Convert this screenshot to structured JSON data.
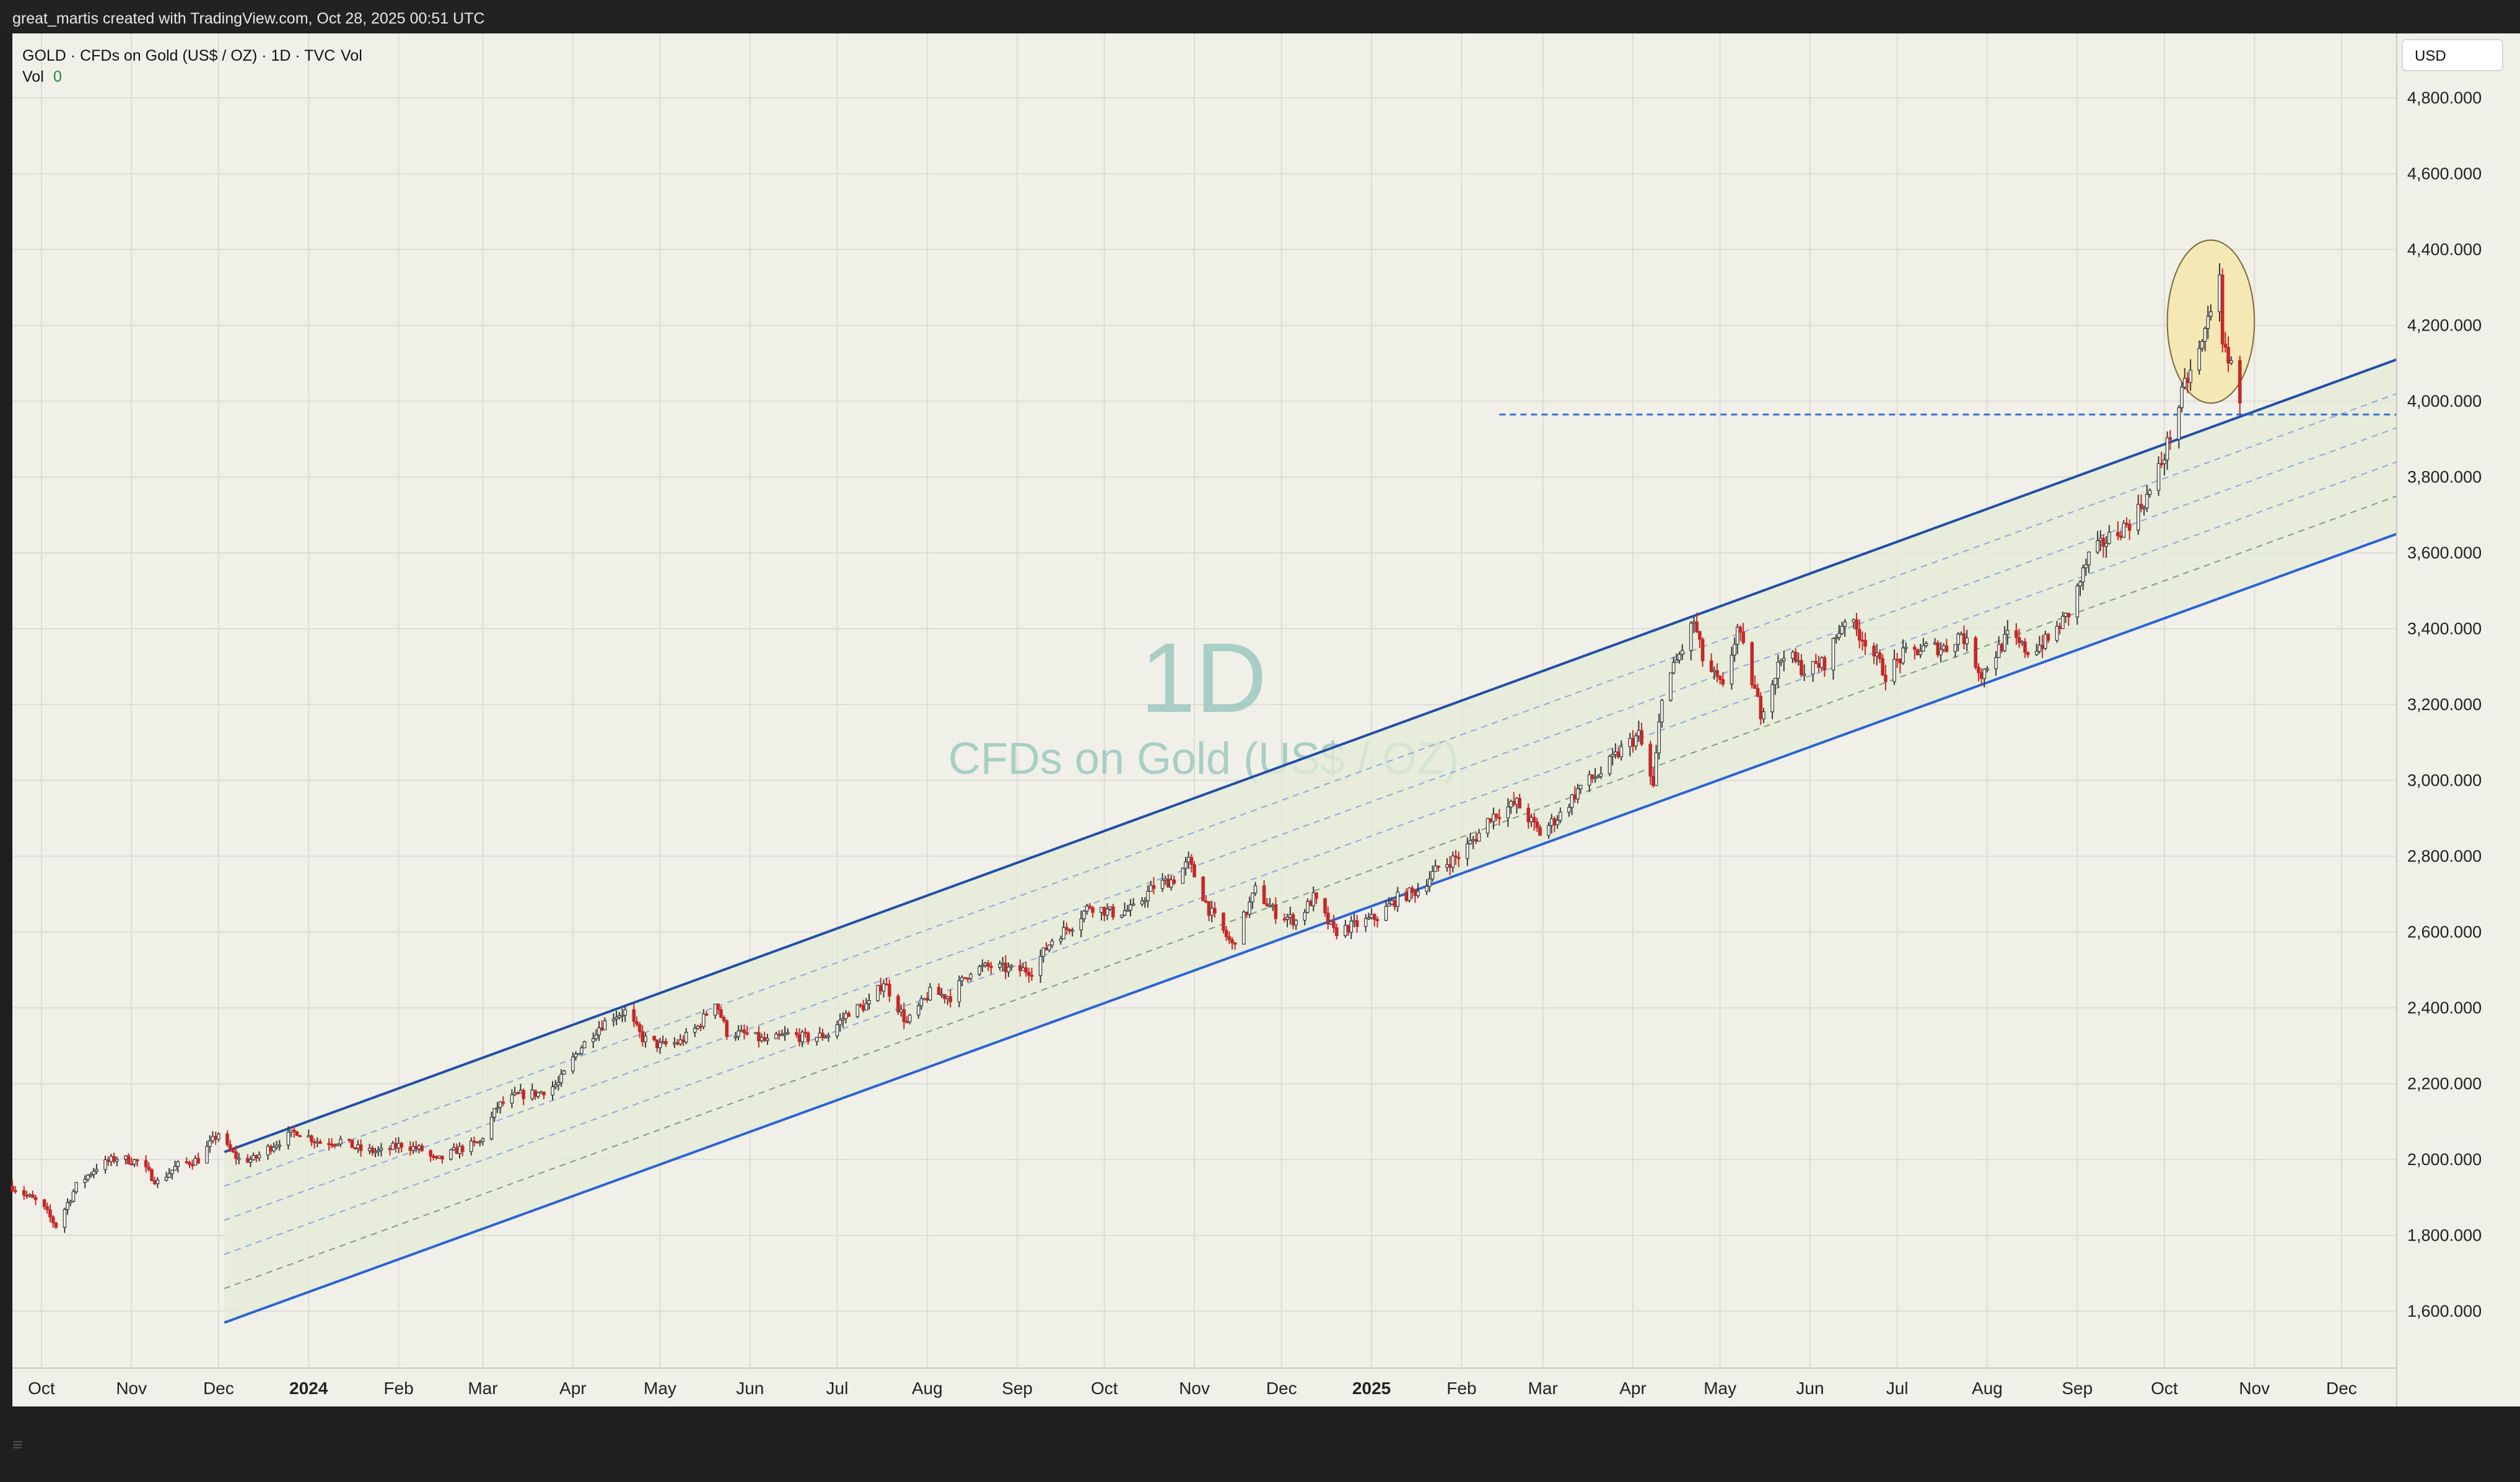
{
  "attribution": "great_martis created with TradingView.com, Oct 28, 2025 00:51 UTC",
  "legend": {
    "symbol_line": "GOLD · CFDs on Gold (US$ / OZ) · 1D · TVC",
    "vol_label": "Vol",
    "vol_value": "0",
    "vol_prefix": "Vol"
  },
  "currency_button": "USD",
  "watermark": {
    "interval": "1D",
    "name": "CFDs on Gold (US$ / OZ)"
  },
  "colors": {
    "background": "#f0efe8",
    "up_candle": "#3a3a3a",
    "down_candle": "#c62828",
    "channel_upper": "#1f4fa8",
    "channel_lower": "#2a63d6",
    "channel_fill": "#e6ebd7",
    "highlight": "#f5e7a8",
    "watermark": "#9cc9bf"
  },
  "chart_data": {
    "type": "candlestick",
    "symbol": "GOLD",
    "y_axis_unit": "USD",
    "ylim": [
      1450,
      4970
    ],
    "y_ticks": [
      1600,
      1800,
      2000,
      2200,
      2400,
      2600,
      2800,
      3000,
      3200,
      3400,
      3600,
      3800,
      4000,
      4200,
      4400,
      4600,
      4800
    ],
    "y_tick_labels": [
      "1,600.000",
      "1,800.000",
      "2,000.000",
      "2,200.000",
      "2,400.000",
      "2,600.000",
      "2,800.000",
      "3,000.000",
      "3,200.000",
      "3,400.000",
      "3,600.000",
      "3,800.000",
      "4,000.000",
      "4,200.000",
      "4,400.000",
      "4,600.000",
      "4,800.000"
    ],
    "x_ticks": [
      {
        "label": "Oct",
        "date": "2023-10-01",
        "bold": false
      },
      {
        "label": "Nov",
        "date": "2023-11-01",
        "bold": false
      },
      {
        "label": "Dec",
        "date": "2023-12-01",
        "bold": false
      },
      {
        "label": "2024",
        "date": "2024-01-01",
        "bold": true
      },
      {
        "label": "Feb",
        "date": "2024-02-01",
        "bold": false
      },
      {
        "label": "Mar",
        "date": "2024-03-01",
        "bold": false
      },
      {
        "label": "Apr",
        "date": "2024-04-01",
        "bold": false
      },
      {
        "label": "May",
        "date": "2024-05-01",
        "bold": false
      },
      {
        "label": "Jun",
        "date": "2024-06-01",
        "bold": false
      },
      {
        "label": "Jul",
        "date": "2024-07-01",
        "bold": false
      },
      {
        "label": "Aug",
        "date": "2024-08-01",
        "bold": false
      },
      {
        "label": "Sep",
        "date": "2024-09-01",
        "bold": false
      },
      {
        "label": "Oct",
        "date": "2024-10-01",
        "bold": false
      },
      {
        "label": "Nov",
        "date": "2024-11-01",
        "bold": false
      },
      {
        "label": "Dec",
        "date": "2024-12-01",
        "bold": false
      },
      {
        "label": "2025",
        "date": "2025-01-01",
        "bold": true
      },
      {
        "label": "Feb",
        "date": "2025-02-01",
        "bold": false
      },
      {
        "label": "Mar",
        "date": "2025-03-01",
        "bold": false
      },
      {
        "label": "Apr",
        "date": "2025-04-01",
        "bold": false
      },
      {
        "label": "May",
        "date": "2025-05-01",
        "bold": false
      },
      {
        "label": "Jun",
        "date": "2025-06-01",
        "bold": false
      },
      {
        "label": "Jul",
        "date": "2025-07-01",
        "bold": false
      },
      {
        "label": "Aug",
        "date": "2025-08-01",
        "bold": false
      },
      {
        "label": "Sep",
        "date": "2025-09-01",
        "bold": false
      },
      {
        "label": "Oct",
        "date": "2025-10-01",
        "bold": false
      },
      {
        "label": "Nov",
        "date": "2025-11-01",
        "bold": false
      },
      {
        "label": "Dec",
        "date": "2025-12-01",
        "bold": false
      }
    ],
    "x_range": [
      "2023-09-21",
      "2025-12-20"
    ],
    "price_path": [
      [
        "2023-09-21",
        1930
      ],
      [
        "2023-10-01",
        1880
      ],
      [
        "2023-10-06",
        1825
      ],
      [
        "2023-10-13",
        1930
      ],
      [
        "2023-10-20",
        1980
      ],
      [
        "2023-10-27",
        2005
      ],
      [
        "2023-11-03",
        1995
      ],
      [
        "2023-11-10",
        1940
      ],
      [
        "2023-11-17",
        1985
      ],
      [
        "2023-11-24",
        2000
      ],
      [
        "2023-12-01",
        2070
      ],
      [
        "2023-12-04",
        2030
      ],
      [
        "2023-12-08",
        2000
      ],
      [
        "2023-12-13",
        2000
      ],
      [
        "2023-12-20",
        2040
      ],
      [
        "2023-12-28",
        2075
      ],
      [
        "2024-01-05",
        2045
      ],
      [
        "2024-01-12",
        2050
      ],
      [
        "2024-01-19",
        2025
      ],
      [
        "2024-01-26",
        2020
      ],
      [
        "2024-02-02",
        2040
      ],
      [
        "2024-02-09",
        2025
      ],
      [
        "2024-02-14",
        1995
      ],
      [
        "2024-02-21",
        2025
      ],
      [
        "2024-02-29",
        2045
      ],
      [
        "2024-03-06",
        2140
      ],
      [
        "2024-03-13",
        2170
      ],
      [
        "2024-03-20",
        2175
      ],
      [
        "2024-03-27",
        2200
      ],
      [
        "2024-04-03",
        2290
      ],
      [
        "2024-04-10",
        2350
      ],
      [
        "2024-04-15",
        2380
      ],
      [
        "2024-04-19",
        2390
      ],
      [
        "2024-04-25",
        2320
      ],
      [
        "2024-05-01",
        2300
      ],
      [
        "2024-05-08",
        2310
      ],
      [
        "2024-05-14",
        2350
      ],
      [
        "2024-05-20",
        2420
      ],
      [
        "2024-05-24",
        2335
      ],
      [
        "2024-05-31",
        2330
      ],
      [
        "2024-06-07",
        2310
      ],
      [
        "2024-06-14",
        2330
      ],
      [
        "2024-06-21",
        2320
      ],
      [
        "2024-06-28",
        2330
      ],
      [
        "2024-07-05",
        2390
      ],
      [
        "2024-07-12",
        2410
      ],
      [
        "2024-07-17",
        2470
      ],
      [
        "2024-07-25",
        2360
      ],
      [
        "2024-08-02",
        2440
      ],
      [
        "2024-08-09",
        2430
      ],
      [
        "2024-08-16",
        2500
      ],
      [
        "2024-08-23",
        2510
      ],
      [
        "2024-08-30",
        2500
      ],
      [
        "2024-09-06",
        2500
      ],
      [
        "2024-09-13",
        2580
      ],
      [
        "2024-09-20",
        2620
      ],
      [
        "2024-09-26",
        2670
      ],
      [
        "2024-10-04",
        2650
      ],
      [
        "2024-10-11",
        2660
      ],
      [
        "2024-10-18",
        2720
      ],
      [
        "2024-10-25",
        2740
      ],
      [
        "2024-10-30",
        2785
      ],
      [
        "2024-11-06",
        2660
      ],
      [
        "2024-11-14",
        2565
      ],
      [
        "2024-11-22",
        2710
      ],
      [
        "2024-11-29",
        2650
      ],
      [
        "2024-12-06",
        2630
      ],
      [
        "2024-12-12",
        2690
      ],
      [
        "2024-12-19",
        2600
      ],
      [
        "2024-12-27",
        2620
      ],
      [
        "2025-01-03",
        2640
      ],
      [
        "2025-01-10",
        2690
      ],
      [
        "2025-01-17",
        2710
      ],
      [
        "2025-01-24",
        2770
      ],
      [
        "2025-01-31",
        2800
      ],
      [
        "2025-02-07",
        2860
      ],
      [
        "2025-02-11",
        2905
      ],
      [
        "2025-02-20",
        2940
      ],
      [
        "2025-02-28",
        2860
      ],
      [
        "2025-03-07",
        2910
      ],
      [
        "2025-03-14",
        2985
      ],
      [
        "2025-03-21",
        3020
      ],
      [
        "2025-03-28",
        3080
      ],
      [
        "2025-04-03",
        3120
      ],
      [
        "2025-04-08",
        2980
      ],
      [
        "2025-04-11",
        3230
      ],
      [
        "2025-04-17",
        3330
      ],
      [
        "2025-04-22",
        3420
      ],
      [
        "2025-04-25",
        3320
      ],
      [
        "2025-05-02",
        3240
      ],
      [
        "2025-05-07",
        3400
      ],
      [
        "2025-05-15",
        3180
      ],
      [
        "2025-05-23",
        3340
      ],
      [
        "2025-05-30",
        3290
      ],
      [
        "2025-06-06",
        3310
      ],
      [
        "2025-06-13",
        3430
      ],
      [
        "2025-06-20",
        3370
      ],
      [
        "2025-06-27",
        3280
      ],
      [
        "2025-07-03",
        3330
      ],
      [
        "2025-07-11",
        3350
      ],
      [
        "2025-07-18",
        3350
      ],
      [
        "2025-07-23",
        3390
      ],
      [
        "2025-07-30",
        3280
      ],
      [
        "2025-08-08",
        3380
      ],
      [
        "2025-08-15",
        3340
      ],
      [
        "2025-08-22",
        3370
      ],
      [
        "2025-08-29",
        3440
      ],
      [
        "2025-09-05",
        3590
      ],
      [
        "2025-09-12",
        3640
      ],
      [
        "2025-09-19",
        3680
      ],
      [
        "2025-09-26",
        3760
      ],
      [
        "2025-10-01",
        3860
      ],
      [
        "2025-10-08",
        4040
      ],
      [
        "2025-10-14",
        4150
      ],
      [
        "2025-10-17",
        4250
      ],
      [
        "2025-10-20",
        4350
      ],
      [
        "2025-10-21",
        4130
      ],
      [
        "2025-10-23",
        4120
      ],
      [
        "2025-10-24",
        4110
      ],
      [
        "2025-10-27",
        3980
      ]
    ],
    "channel": {
      "upper_line": {
        "start": [
          "2023-12-03",
          2020
        ],
        "end": [
          "2025-12-20",
          4110
        ]
      },
      "lower_line": {
        "start": [
          "2023-12-03",
          1570
        ],
        "end": [
          "2025-12-20",
          3650
        ]
      },
      "inner_dashed_offsets": [
        -90,
        -180,
        -270,
        -360
      ]
    },
    "horizontal_level": {
      "price": 3965,
      "from": "2025-02-14",
      "to": "2025-12-20",
      "style": "dashed"
    },
    "highlight_ellipse": {
      "center": [
        "2025-10-17",
        4210
      ],
      "span_days": 30,
      "span_price": 430
    }
  }
}
